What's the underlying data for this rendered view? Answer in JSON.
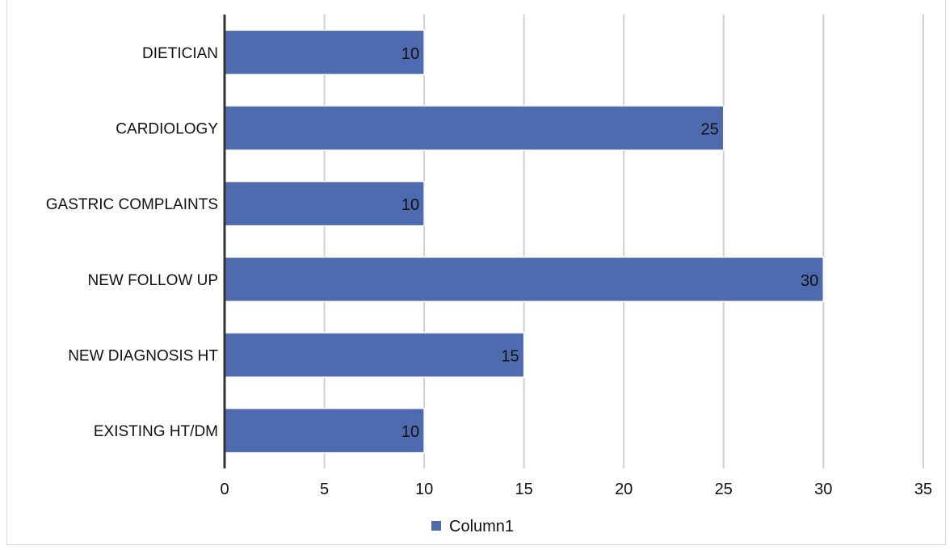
{
  "chart_data": {
    "type": "bar",
    "orientation": "horizontal",
    "categories": [
      "DIETICIAN",
      "CARDIOLOGY",
      "GASTRIC COMPLAINTS",
      "NEW FOLLOW UP",
      "NEW DIAGNOSIS HT",
      "EXISTING HT/DM"
    ],
    "series": [
      {
        "name": "Column1",
        "values": [
          10,
          25,
          10,
          30,
          15,
          10
        ],
        "color": "#4e6bb0"
      }
    ],
    "x_ticks": [
      0,
      5,
      10,
      15,
      20,
      25,
      30,
      35
    ],
    "xlim": [
      0,
      35
    ],
    "grid": true,
    "data_labels": true,
    "legend_position": "bottom",
    "title": "",
    "xlabel": "",
    "ylabel": ""
  }
}
